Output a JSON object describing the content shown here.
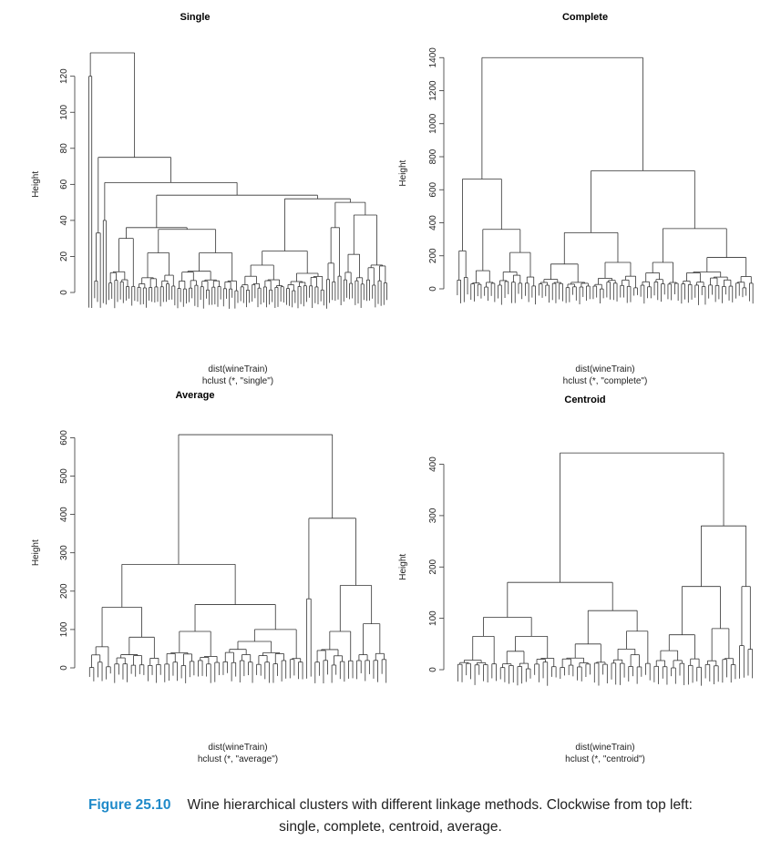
{
  "chart_data": [
    {
      "type": "dendrogram",
      "title": "Single",
      "ylabel": "Height",
      "xlabel_lines": [
        "dist(wineTrain)",
        "hclust (*, \"single\")"
      ],
      "yticks": [
        0,
        20,
        40,
        60,
        80,
        100,
        120
      ],
      "ylim": [
        0,
        134
      ],
      "root": {
        "height": 133,
        "children": [
          {
            "height": 120,
            "leaves": 2
          },
          {
            "height": 75,
            "children": [
              {
                "height": 33,
                "leaves": 3
              },
              {
                "height": 61,
                "children": [
                  {
                    "height": 40,
                    "leaves": 2
                  },
                  {
                    "height": 54,
                    "children": [
                      {
                        "height": 36,
                        "children": [
                          {
                            "height": 30,
                            "leaves": 10
                          },
                          {
                            "height": 35,
                            "children": [
                              {
                                "height": 22,
                                "leaves": 14
                              },
                              {
                                "height": 22,
                                "leaves": 22
                              }
                            ]
                          }
                        ]
                      },
                      {
                        "height": 52,
                        "children": [
                          {
                            "height": 23,
                            "leaves": 30
                          },
                          {
                            "height": 50,
                            "children": [
                              {
                                "height": 36,
                                "leaves": 6
                              },
                              {
                                "height": 43,
                                "leaves": 16
                              }
                            ]
                          }
                        ]
                      }
                    ]
                  }
                ]
              }
            ]
          }
        ]
      }
    },
    {
      "type": "dendrogram",
      "title": "Complete",
      "ylabel": "Height",
      "xlabel_lines": [
        "dist(wineTrain)",
        "hclust (*, \"complete\")"
      ],
      "yticks": [
        0,
        200,
        400,
        600,
        800,
        1000,
        1200,
        1400
      ],
      "ylim": [
        0,
        1440
      ],
      "root": {
        "height": 1400,
        "children": [
          {
            "height": 665,
            "children": [
              {
                "height": 230,
                "leaves": 4
              },
              {
                "height": 360,
                "children": [
                  {
                    "height": 110,
                    "leaves": 8
                  },
                  {
                    "height": 220,
                    "leaves": 12
                  }
                ]
              }
            ]
          },
          {
            "height": 715,
            "children": [
              {
                "height": 340,
                "children": [
                  {
                    "height": 150,
                    "leaves": 16
                  },
                  {
                    "height": 160,
                    "leaves": 14
                  }
                ]
              },
              {
                "height": 365,
                "children": [
                  {
                    "height": 160,
                    "leaves": 12
                  },
                  {
                    "height": 190,
                    "leaves": 22
                  }
                ]
              }
            ]
          }
        ]
      }
    },
    {
      "type": "dendrogram",
      "title": "Average",
      "ylabel": "Height",
      "xlabel_lines": [
        "dist(wineTrain)",
        "hclust (*, \"average\")"
      ],
      "yticks": [
        0,
        100,
        200,
        300,
        400,
        500,
        600
      ],
      "ylim": [
        0,
        620
      ],
      "root": {
        "height": 608,
        "children": [
          {
            "height": 270,
            "children": [
              {
                "height": 158,
                "children": [
                  {
                    "height": 55,
                    "leaves": 6
                  },
                  {
                    "height": 80,
                    "leaves": 12
                  }
                ]
              },
              {
                "height": 165,
                "children": [
                  {
                    "height": 95,
                    "leaves": 14
                  },
                  {
                    "height": 100,
                    "leaves": 20
                  }
                ]
              }
            ]
          },
          {
            "height": 390,
            "children": [
              {
                "height": 180,
                "leaves": 2
              },
              {
                "height": 215,
                "children": [
                  {
                    "height": 95,
                    "leaves": 10
                  },
                  {
                    "height": 115,
                    "leaves": 8
                  }
                ]
              }
            ]
          }
        ]
      }
    },
    {
      "type": "dendrogram",
      "title": "Centroid",
      "ylabel": "Height",
      "xlabel_lines": [
        "dist(wineTrain)",
        "hclust (*, \"centroid\")"
      ],
      "yticks": [
        0,
        100,
        200,
        300,
        400
      ],
      "ylim": [
        0,
        440
      ],
      "root": {
        "height": 422,
        "children": [
          {
            "height": 170,
            "children": [
              {
                "height": 102,
                "children": [
                  {
                    "height": 65,
                    "leaves": 10
                  },
                  {
                    "height": 65,
                    "leaves": 14
                  }
                ]
              },
              {
                "height": 115,
                "children": [
                  {
                    "height": 50,
                    "leaves": 12
                  },
                  {
                    "height": 75,
                    "leaves": 10
                  }
                ]
              }
            ]
          },
          {
            "height": 280,
            "children": [
              {
                "height": 162,
                "children": [
                  {
                    "height": 68,
                    "leaves": 12
                  },
                  {
                    "height": 80,
                    "leaves": 8
                  }
                ]
              },
              {
                "height": 162,
                "leaves": 4
              }
            ]
          }
        ]
      }
    }
  ],
  "caption": {
    "label": "Figure 25.10",
    "line1": "Wine hierarchical clusters with different linkage methods. Clockwise from top left:",
    "line2": "single, complete, centroid, average."
  }
}
